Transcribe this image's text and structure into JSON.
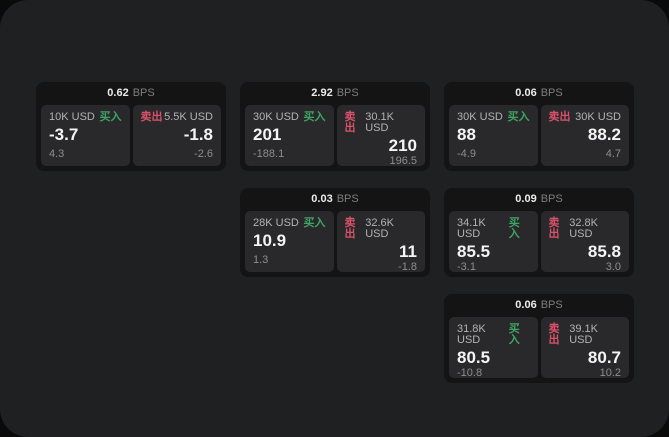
{
  "labels": {
    "bps": "BPS",
    "buy": "买入",
    "sell": "卖出"
  },
  "colors": {
    "buy": "#3fa463",
    "sell": "#d9516a",
    "surface": "#1f2022",
    "card": "#141415",
    "panel": "#29292b"
  },
  "cards": [
    {
      "bps": "0.62",
      "col": 1,
      "row": 1,
      "buy": {
        "amount": "10K USD",
        "value": "-3.7",
        "delta": "4.3"
      },
      "sell": {
        "amount": "5.5K USD",
        "value": "-1.8",
        "delta": "-2.6"
      }
    },
    {
      "bps": "2.92",
      "col": 2,
      "row": 1,
      "buy": {
        "amount": "30K USD",
        "value": "201",
        "delta": "-188.1"
      },
      "sell": {
        "amount": "30.1K USD",
        "value": "210",
        "delta": "196.5"
      }
    },
    {
      "bps": "0.06",
      "col": 3,
      "row": 1,
      "buy": {
        "amount": "30K USD",
        "value": "88",
        "delta": "-4.9"
      },
      "sell": {
        "amount": "30K USD",
        "value": "88.2",
        "delta": "4.7"
      }
    },
    {
      "bps": "0.03",
      "col": 2,
      "row": 2,
      "buy": {
        "amount": "28K USD",
        "value": "10.9",
        "delta": "1.3"
      },
      "sell": {
        "amount": "32.6K USD",
        "value": "11",
        "delta": "-1.8"
      }
    },
    {
      "bps": "0.09",
      "col": 3,
      "row": 2,
      "buy": {
        "amount": "34.1K USD",
        "value": "85.5",
        "delta": "-3.1"
      },
      "sell": {
        "amount": "32.8K USD",
        "value": "85.8",
        "delta": "3.0"
      }
    },
    {
      "bps": "0.06",
      "col": 3,
      "row": 3,
      "buy": {
        "amount": "31.8K USD",
        "value": "80.5",
        "delta": "-10.8"
      },
      "sell": {
        "amount": "39.1K USD",
        "value": "80.7",
        "delta": "10.2"
      }
    }
  ]
}
